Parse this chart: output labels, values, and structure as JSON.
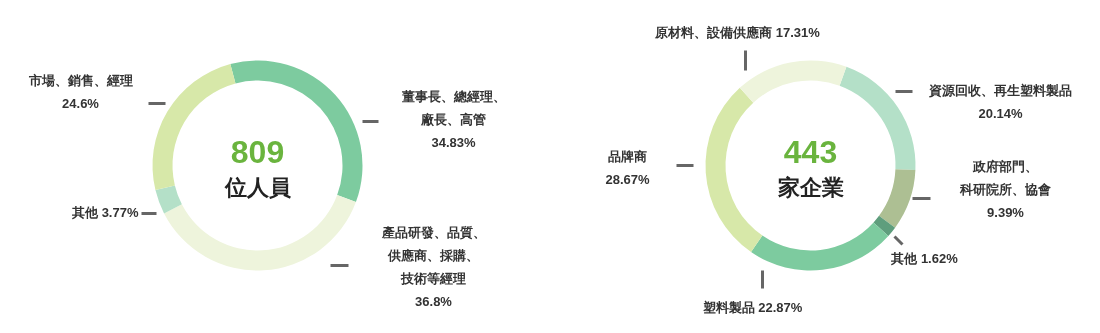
{
  "chart_data": [
    {
      "type": "donut",
      "categories": [
        "董事長、總經理、廠長、高管",
        "產品研發、品質、供應商、採購、技術等經理",
        "其他",
        "市場、銷售、經理"
      ],
      "values": [
        34.83,
        36.8,
        3.77,
        24.6
      ],
      "colors": [
        "#7dcb9f",
        "#eef4dc",
        "#b4e0c8",
        "#d7e8a9"
      ],
      "value_labels": [
        "34.83%",
        "36.8%",
        "3.77%",
        "24.6%"
      ],
      "annotations": [
        "809",
        "位人員"
      ]
    },
    {
      "type": "donut",
      "categories": [
        "資源回收、再生塑料製品",
        "政府部門、科研院所、協會",
        "其他",
        "塑料製品",
        "品牌商",
        "原材料、設備供應商"
      ],
      "values": [
        20.14,
        9.39,
        1.62,
        22.87,
        28.67,
        17.31
      ],
      "colors": [
        "#b4e0c8",
        "#adbf93",
        "#5f9e7d",
        "#7dcb9f",
        "#d7e8a9",
        "#eef4dc"
      ],
      "value_labels": [
        "20.14%",
        "9.39%",
        "1.62%",
        "22.87%",
        "28.67%",
        "17.31%"
      ],
      "annotations": [
        "443",
        "家企業"
      ]
    }
  ]
}
